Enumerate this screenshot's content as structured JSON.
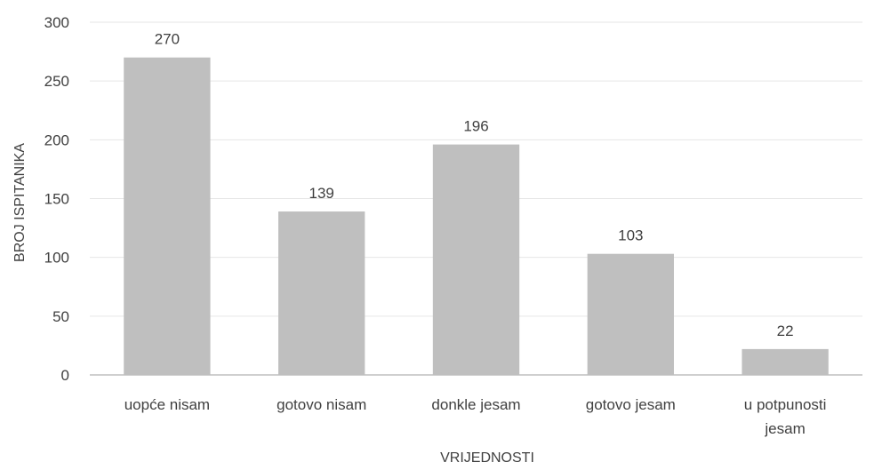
{
  "chart_data": {
    "type": "bar",
    "categories": [
      [
        "uopće nisam"
      ],
      [
        "gotovo nisam"
      ],
      [
        "donkle jesam"
      ],
      [
        "gotovo jesam"
      ],
      [
        "u potpunosti",
        "jesam"
      ]
    ],
    "values": [
      270,
      139,
      196,
      103,
      22
    ],
    "title": "",
    "xlabel": "VRIJEDNOSTI",
    "ylabel": "BROJ ISPITANIKA",
    "ylim": [
      0,
      300
    ],
    "yticks": [
      0,
      50,
      100,
      150,
      200,
      250,
      300
    ],
    "grid": true,
    "legend": "none",
    "bar_color": "#bfbfbf"
  }
}
